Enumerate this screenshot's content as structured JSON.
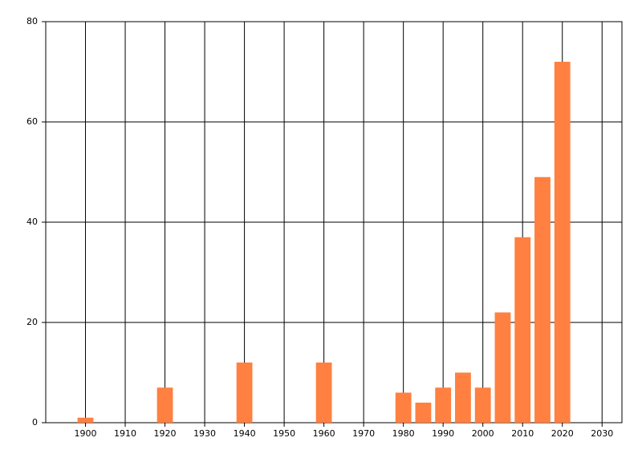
{
  "chart_data": {
    "type": "bar",
    "x": [
      1900,
      1920,
      1940,
      1960,
      1980,
      1985,
      1990,
      1995,
      2000,
      2005,
      2010,
      2015,
      2020
    ],
    "values": [
      1,
      7,
      12,
      12,
      6,
      4,
      7,
      10,
      7,
      22,
      37,
      49,
      72
    ],
    "color": "#ff8040",
    "xlim": [
      1890,
      2035
    ],
    "xticks": [
      1900,
      1910,
      1920,
      1930,
      1940,
      1950,
      1960,
      1970,
      1980,
      1990,
      2000,
      2010,
      2020,
      2030
    ],
    "ylim": [
      0,
      80
    ],
    "yticks": [
      0,
      20,
      40,
      60,
      80
    ],
    "grid": true
  }
}
